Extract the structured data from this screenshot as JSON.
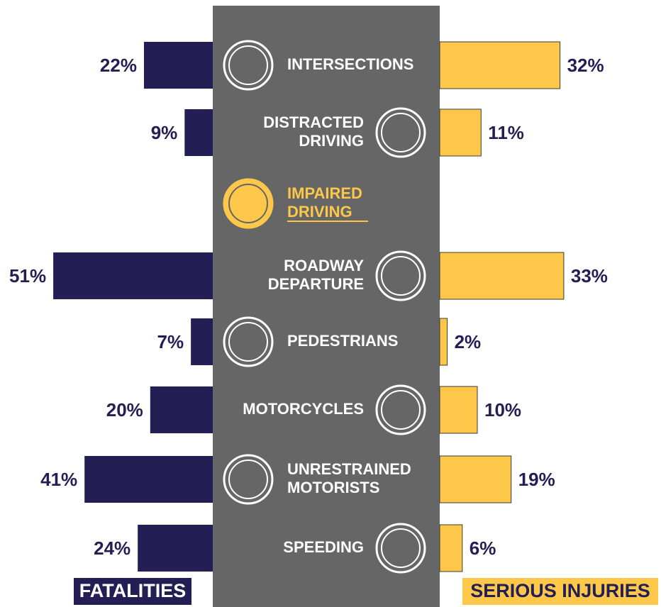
{
  "chart_data": {
    "type": "butterfly-bar",
    "categories": [
      [
        "INTERSECTIONS"
      ],
      [
        "DISTRACTED",
        "DRIVING"
      ],
      [
        "IMPAIRED",
        "DRIVING"
      ],
      [
        "ROADWAY",
        "DEPARTURE"
      ],
      [
        "PEDESTRIANS"
      ],
      [
        "MOTORCYCLES"
      ],
      [
        "UNRESTRAINED",
        "MOTORISTS"
      ],
      [
        "SPEEDING"
      ]
    ],
    "series": [
      {
        "name": "FATALITIES",
        "color": "#231f54",
        "side": "left",
        "values": [
          22,
          9,
          null,
          51,
          7,
          20,
          41,
          24
        ],
        "value_labels": [
          "22%",
          "9%",
          null,
          "51%",
          "7%",
          "20%",
          "41%",
          "24%"
        ]
      },
      {
        "name": "SERIOUS INJURIES",
        "color": "#fdc84a",
        "side": "right",
        "values": [
          32,
          11,
          null,
          33,
          2,
          10,
          19,
          6
        ],
        "value_labels": [
          "32%",
          "11%",
          null,
          "33%",
          "2%",
          "10%",
          "19%",
          "6%"
        ]
      }
    ]
  }
}
